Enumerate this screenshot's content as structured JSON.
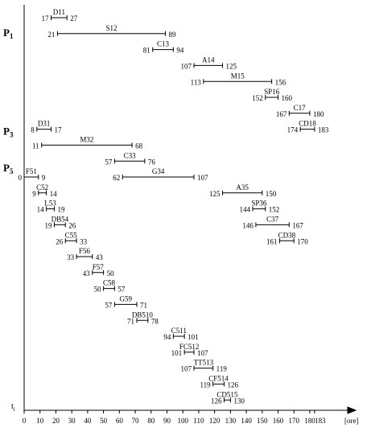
{
  "chart_data": {
    "type": "gantt",
    "x_label": "[ore]",
    "y_label": {
      "name": "t",
      "sub": "i"
    },
    "groups": [
      {
        "name": "P",
        "sub": "1"
      },
      {
        "name": "P",
        "sub": "3"
      },
      {
        "name": "P",
        "sub": "5"
      }
    ],
    "xlim": [
      0,
      200
    ],
    "xticks": [
      0,
      10,
      20,
      30,
      40,
      50,
      60,
      70,
      80,
      90,
      100,
      110,
      120,
      130,
      140,
      150,
      160,
      170,
      180,
      183
    ],
    "rows": [
      [
        {
          "name": "D11",
          "start": 17,
          "end": 27
        }
      ],
      [
        {
          "name": "S12",
          "start": 21,
          "end": 89
        }
      ],
      [
        {
          "name": "C13",
          "start": 81,
          "end": 94
        }
      ],
      [
        {
          "name": "A14",
          "start": 107,
          "end": 125
        }
      ],
      [
        {
          "name": "M15",
          "start": 113,
          "end": 156
        }
      ],
      [
        {
          "name": "SP16",
          "start": 152,
          "end": 160
        }
      ],
      [
        {
          "name": "C17",
          "start": 167,
          "end": 180
        }
      ],
      [
        {
          "name": "CD18",
          "start": 174,
          "end": 183
        },
        {
          "name": "D31",
          "start": 8,
          "end": 17
        }
      ],
      [
        {
          "name": "M32",
          "start": 11,
          "end": 68
        }
      ],
      [
        {
          "name": "C33",
          "start": 57,
          "end": 76
        }
      ],
      [
        {
          "name": "G34",
          "start": 62,
          "end": 107
        },
        {
          "name": "F51",
          "start": 0,
          "end": 9
        }
      ],
      [
        {
          "name": "A35",
          "start": 125,
          "end": 150
        },
        {
          "name": "C52",
          "start": 9,
          "end": 14
        }
      ],
      [
        {
          "name": "SP36",
          "start": 144,
          "end": 152
        },
        {
          "name": "L53",
          "start": 14,
          "end": 19
        }
      ],
      [
        {
          "name": "C37",
          "start": 146,
          "end": 167
        },
        {
          "name": "DB54",
          "start": 19,
          "end": 26
        }
      ],
      [
        {
          "name": "CD38",
          "start": 161,
          "end": 170
        },
        {
          "name": "C55",
          "start": 26,
          "end": 33
        }
      ],
      [
        {
          "name": "F56",
          "start": 33,
          "end": 43
        }
      ],
      [
        {
          "name": "F57",
          "start": 43,
          "end": 50
        }
      ],
      [
        {
          "name": "C58",
          "start": 50,
          "end": 57
        }
      ],
      [
        {
          "name": "G59",
          "start": 57,
          "end": 71
        }
      ],
      [
        {
          "name": "DB510",
          "start": 71,
          "end": 78
        }
      ],
      [
        {
          "name": "C511",
          "start": 94,
          "end": 101
        }
      ],
      [
        {
          "name": "FC512",
          "start": 101,
          "end": 107
        }
      ],
      [
        {
          "name": "TT513",
          "start": 107,
          "end": 119
        }
      ],
      [
        {
          "name": "CF514",
          "start": 119,
          "end": 126
        }
      ],
      [
        {
          "name": "CD515",
          "start": 126,
          "end": 130
        }
      ]
    ]
  }
}
